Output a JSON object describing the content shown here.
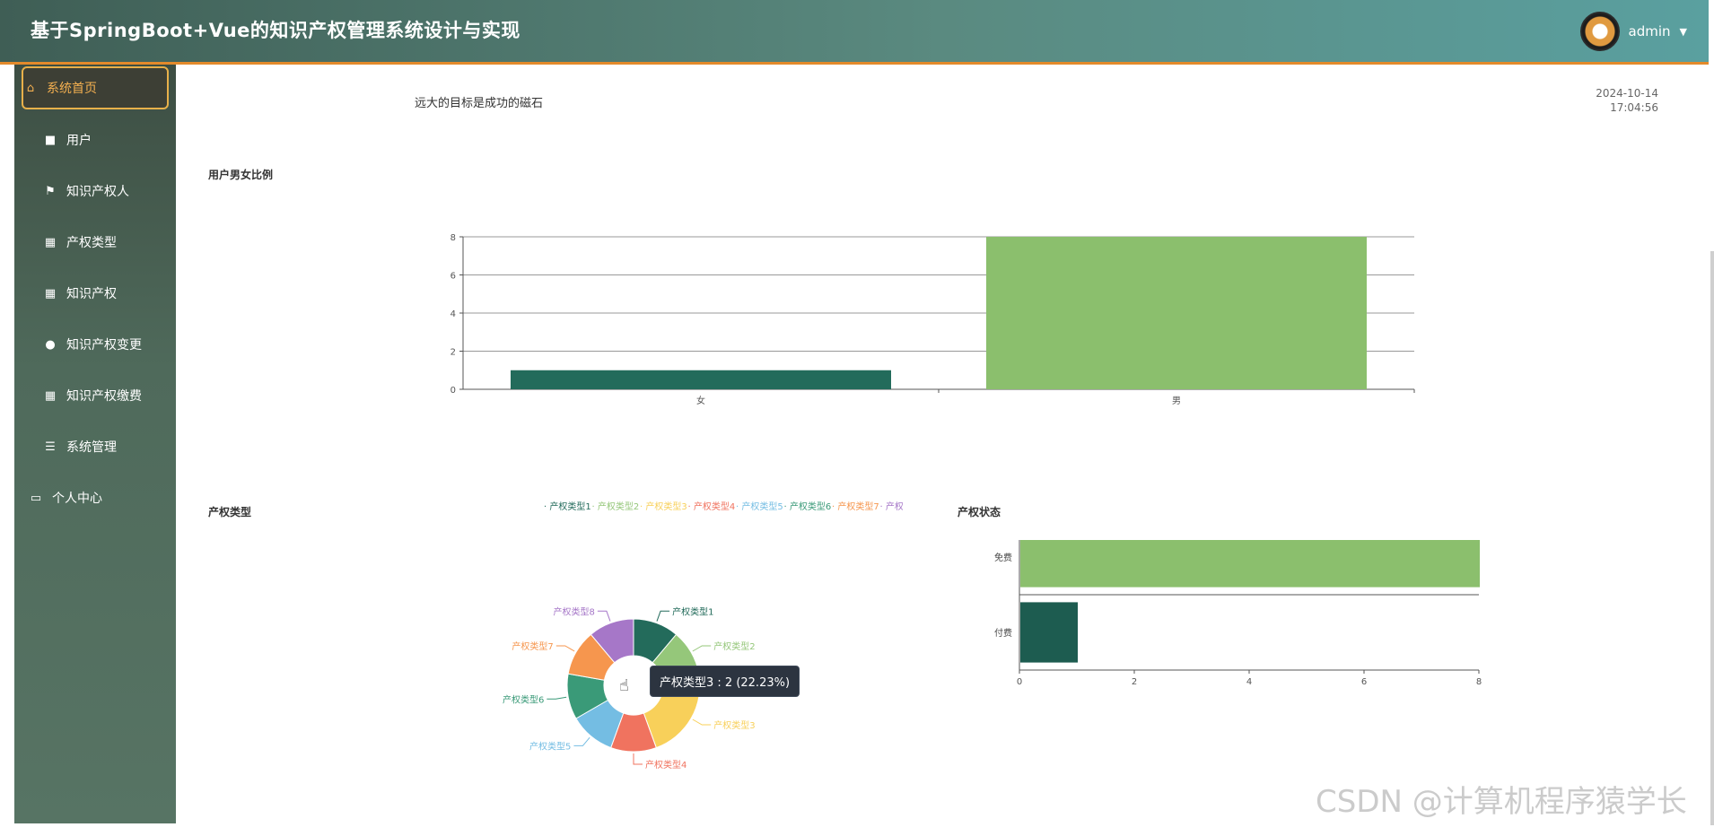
{
  "header": {
    "title": "基于SpringBoot+Vue的知识产权管理系统设计与实现",
    "username": "admin",
    "caret": "▼"
  },
  "sidebar": {
    "items": [
      {
        "label": "系统首页",
        "icon": "home-icon",
        "glyph": "⌂"
      },
      {
        "label": "用户",
        "icon": "chat-icon",
        "glyph": "■"
      },
      {
        "label": "知识产权人",
        "icon": "flag-icon",
        "glyph": "⚑"
      },
      {
        "label": "产权类型",
        "icon": "grid-icon",
        "glyph": "▦"
      },
      {
        "label": "知识产权",
        "icon": "grid-icon",
        "glyph": "▦"
      },
      {
        "label": "知识产权变更",
        "icon": "location-pin-icon",
        "glyph": "●"
      },
      {
        "label": "知识产权缴费",
        "icon": "grid-icon",
        "glyph": "▦"
      },
      {
        "label": "系统管理",
        "icon": "list-icon",
        "glyph": "☰"
      },
      {
        "label": "个人中心",
        "icon": "id-card-icon",
        "glyph": "▭"
      }
    ]
  },
  "main": {
    "motto": "远大的目标是成功的磁石",
    "date": "2024-10-14",
    "time": "17:04:56"
  },
  "colors": {
    "accent": "#e38a2b",
    "dark_green": "#236b5b",
    "light_green": "#8bbf6d"
  },
  "tooltip": "产权类型3 : 2 (22.23%)",
  "watermark": "CSDN @计算机程序猿学长",
  "chart_data": [
    {
      "type": "bar",
      "title": "用户男女比例",
      "categories": [
        "女",
        "男"
      ],
      "values": [
        1,
        8
      ],
      "colors": [
        "#236b5b",
        "#8bbf6d"
      ],
      "ylim": [
        0,
        8
      ],
      "yticks": [
        0,
        2,
        4,
        6,
        8
      ],
      "grid": true
    },
    {
      "type": "pie",
      "title": "产权类型",
      "legend_position": "top",
      "categories": [
        "产权类型1",
        "产权类型2",
        "产权类型3",
        "产权类型4",
        "产权类型5",
        "产权类型6",
        "产权类型7",
        "产权类型8"
      ],
      "values": [
        1,
        1,
        2,
        1,
        1,
        1,
        1,
        1
      ],
      "colors": [
        "#236b5b",
        "#95c77a",
        "#f8d05a",
        "#f0735f",
        "#74bde3",
        "#3a9a78",
        "#f6964e",
        "#a677c8"
      ]
    },
    {
      "type": "bar",
      "orientation": "horizontal",
      "title": "产权状态",
      "categories": [
        "免费",
        "付费"
      ],
      "values": [
        8,
        1
      ],
      "colors": [
        "#8bbf6d",
        "#1d5c50"
      ],
      "xlim": [
        0,
        8
      ],
      "xticks": [
        0,
        2,
        4,
        6,
        8
      ]
    }
  ]
}
